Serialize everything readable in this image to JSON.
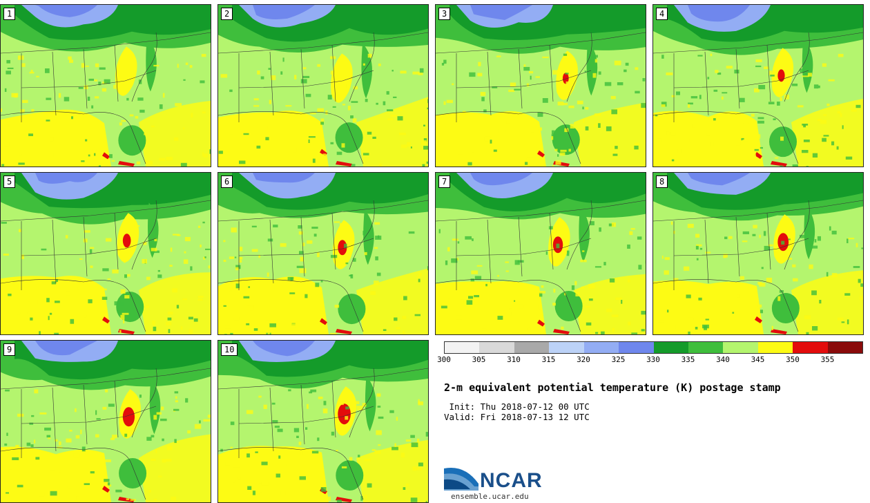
{
  "panels": [
    {
      "label": "1"
    },
    {
      "label": "2"
    },
    {
      "label": "3"
    },
    {
      "label": "4"
    },
    {
      "label": "5"
    },
    {
      "label": "6"
    },
    {
      "label": "7"
    },
    {
      "label": "8"
    },
    {
      "label": "9"
    },
    {
      "label": "10"
    }
  ],
  "colorbar": {
    "colors": [
      "#f3f3f3",
      "#d9d9d9",
      "#a9a9a9",
      "#bcd2f7",
      "#93adf4",
      "#6f87ed",
      "#149b2a",
      "#3fbe3c",
      "#b4f56e",
      "#fdfb14",
      "#e30c0c",
      "#8a0b0b"
    ],
    "ticks": [
      "300",
      "305",
      "310",
      "315",
      "320",
      "325",
      "330",
      "335",
      "340",
      "345",
      "350",
      "355"
    ]
  },
  "map_colors": {
    "background": "#b4f56e",
    "cold": "#6f87ed",
    "cool": "#93adf4",
    "dark_green": "#149b2a",
    "mid_green": "#3fbe3c",
    "yellow": "#fdfb14",
    "red": "#e30c0c",
    "border": "#333333"
  },
  "title": "2-m equivalent potential temperature (K) postage stamp",
  "init": " Init: Thu 2018-07-12 00 UTC",
  "valid": "Valid: Fri 2018-07-13 12 UTC",
  "logo": {
    "name": "NCAR",
    "site": "ensemble.ucar.edu"
  }
}
